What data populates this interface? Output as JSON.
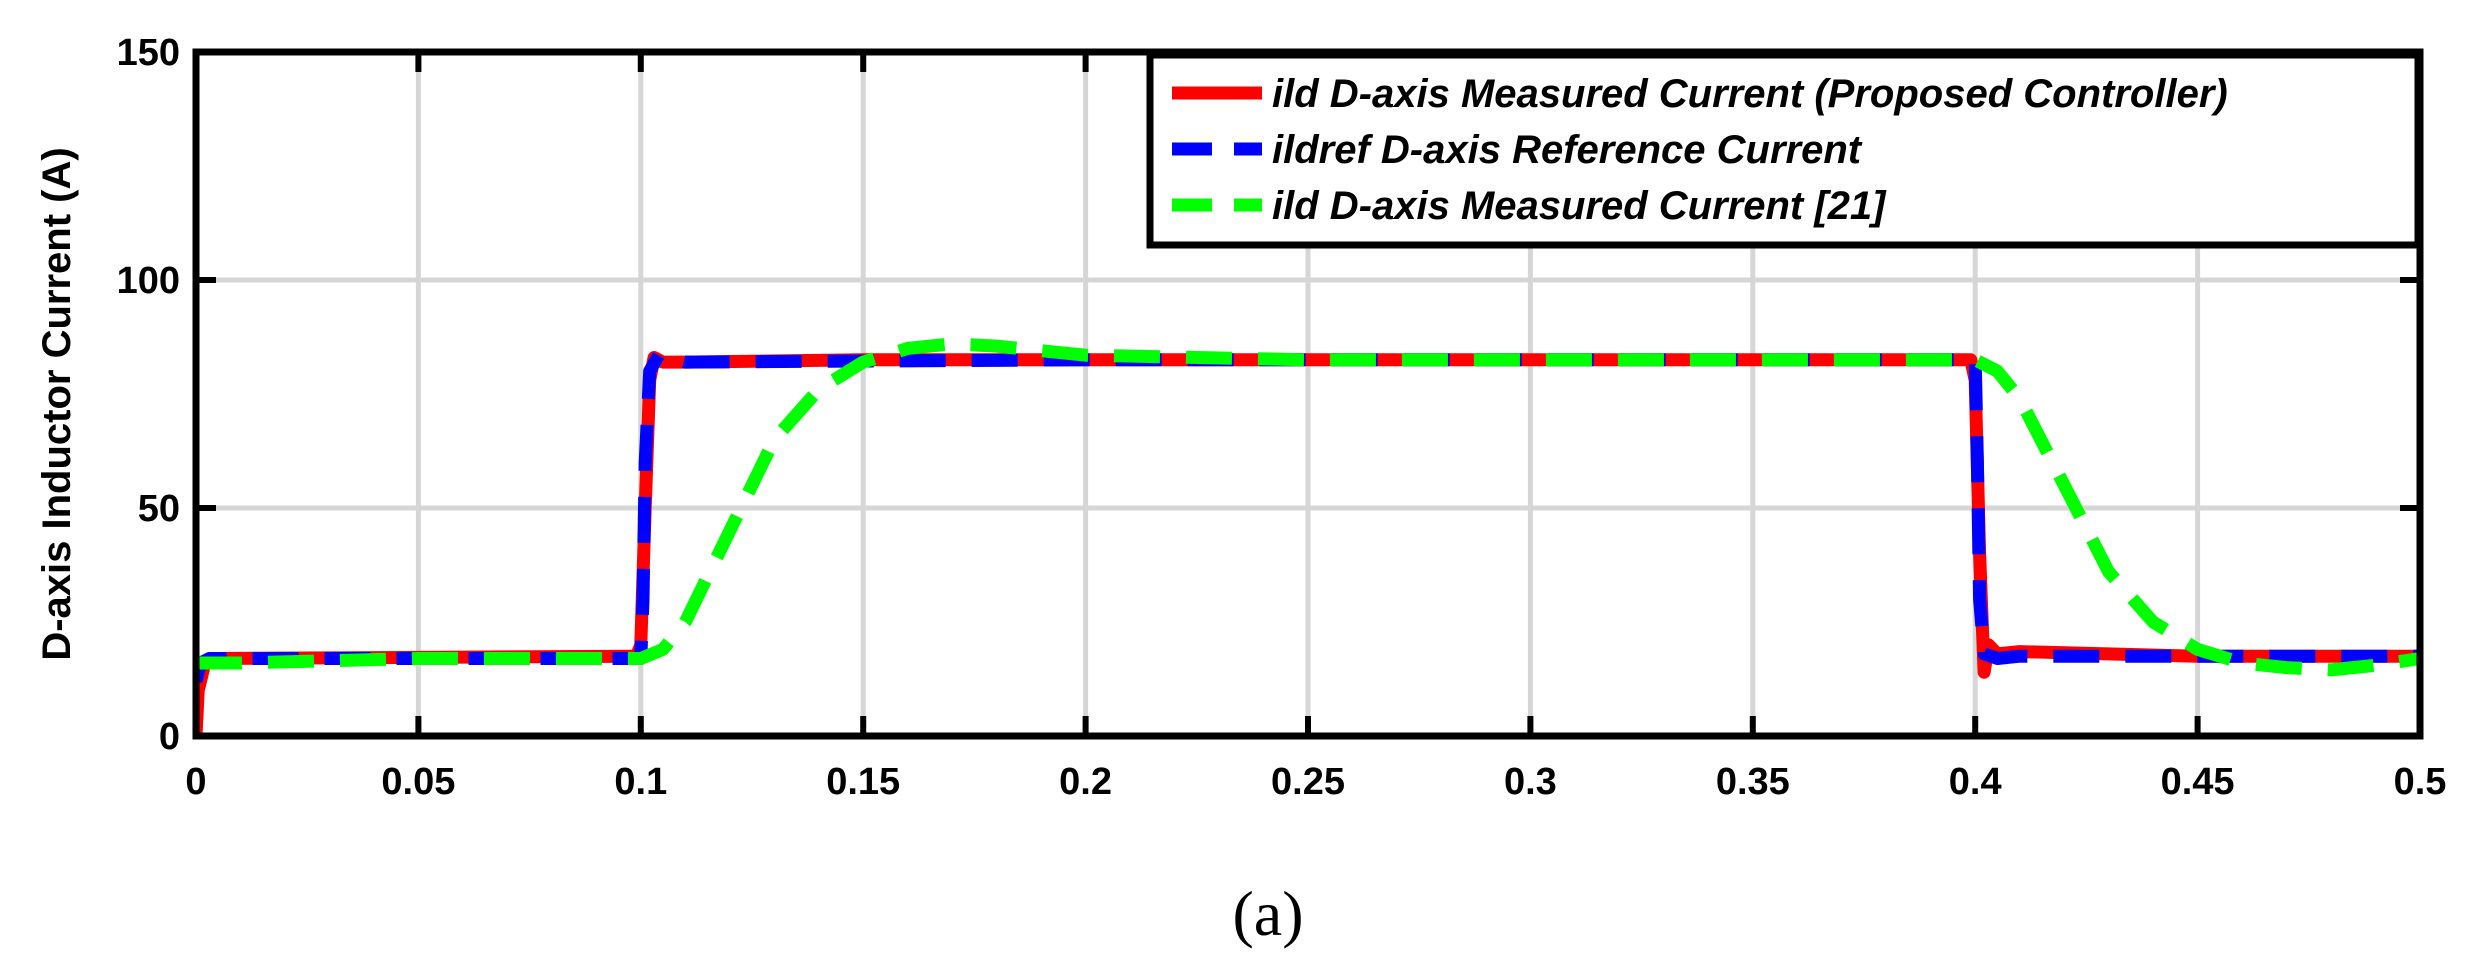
{
  "chart_data": {
    "type": "line",
    "xlabel": "",
    "ylabel": "D-axis Inductor Current (A)",
    "xlim": [
      0,
      0.5
    ],
    "ylim": [
      0,
      150
    ],
    "xticks": [
      "0",
      "0.05",
      "0.1",
      "0.15",
      "0.2",
      "0.25",
      "0.3",
      "0.35",
      "0.4",
      "0.45",
      "0.5"
    ],
    "yticks": [
      "0",
      "50",
      "100",
      "150"
    ],
    "grid": true,
    "legend_position": "top-right",
    "caption": "(a)",
    "series": [
      {
        "name": "ild D-axis Measured Current (Proposed Controller)",
        "color": "#ff0000",
        "style": "solid",
        "x": [
          0,
          0.0005,
          0.002,
          0.005,
          0.098,
          0.099,
          0.1,
          0.101,
          0.102,
          0.103,
          0.105,
          0.11,
          0.15,
          0.2,
          0.3,
          0.398,
          0.399,
          0.4,
          0.401,
          0.402,
          0.403,
          0.405,
          0.41,
          0.45,
          0.5
        ],
        "y": [
          0,
          10,
          16,
          17,
          17.5,
          17.5,
          20,
          50,
          78,
          83,
          82,
          82,
          82.5,
          82.5,
          82.5,
          82.5,
          82.5,
          78,
          40,
          14,
          20,
          18,
          18.5,
          17.5,
          17.5
        ]
      },
      {
        "name": "ildref D-axis Reference Current",
        "color": "#0000ff",
        "style": "dashed",
        "x": [
          0,
          0.001,
          0.003,
          0.1,
          0.1005,
          0.101,
          0.102,
          0.104,
          0.11,
          0.2,
          0.3,
          0.399,
          0.4,
          0.4005,
          0.401,
          0.402,
          0.405,
          0.41,
          0.45,
          0.5
        ],
        "y": [
          12,
          16,
          17,
          17,
          30,
          60,
          80,
          83.5,
          82,
          82.5,
          82.5,
          82.5,
          82.5,
          60,
          30,
          18,
          17,
          17.5,
          17.5,
          17.5
        ]
      },
      {
        "name": "ild D-axis Measured Current [21]",
        "color": "#00ff00",
        "style": "dashed",
        "x": [
          0,
          0.01,
          0.05,
          0.1,
          0.105,
          0.11,
          0.12,
          0.13,
          0.14,
          0.15,
          0.16,
          0.17,
          0.18,
          0.19,
          0.2,
          0.25,
          0.3,
          0.35,
          0.4,
          0.405,
          0.41,
          0.42,
          0.43,
          0.44,
          0.45,
          0.46,
          0.47,
          0.48,
          0.49,
          0.5
        ],
        "y": [
          16,
          16,
          17,
          17,
          19,
          25,
          45,
          65,
          76,
          82,
          85,
          86,
          85.5,
          84.5,
          83.5,
          82.5,
          82.5,
          82.5,
          82.5,
          80,
          74,
          55,
          36,
          25,
          19,
          16,
          15,
          14.5,
          15.5,
          17
        ]
      }
    ]
  }
}
